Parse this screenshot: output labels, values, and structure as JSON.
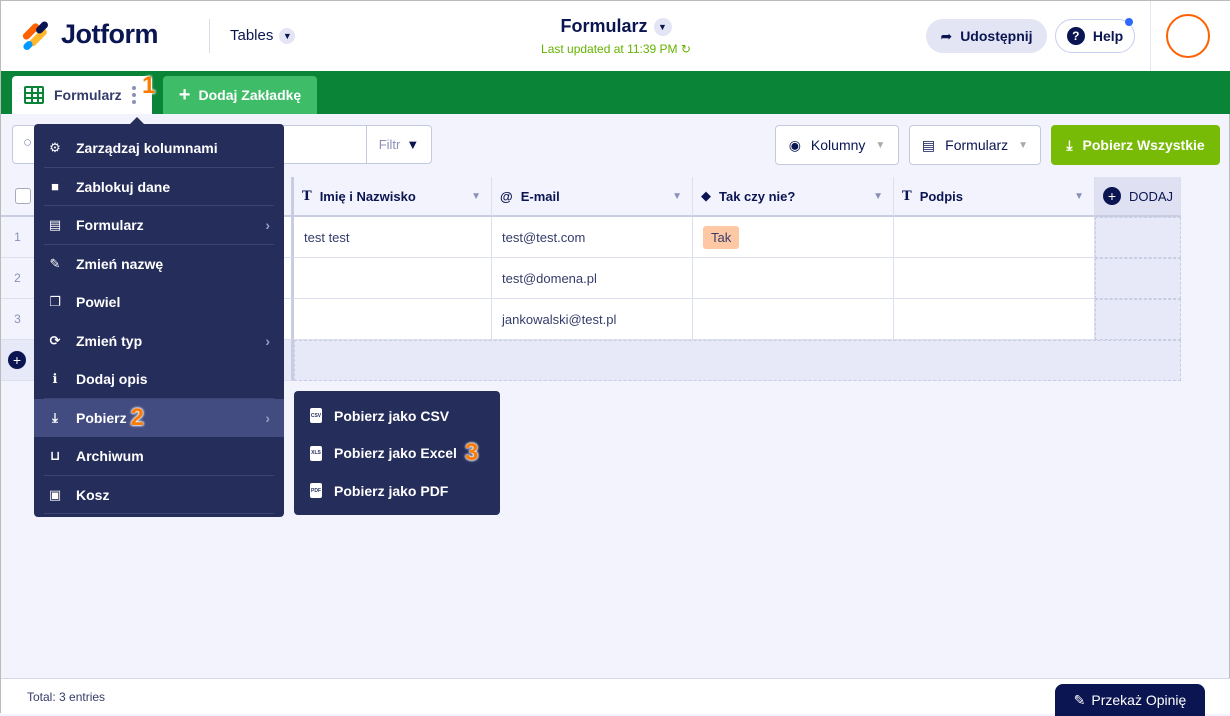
{
  "header": {
    "logo": "Jotform",
    "tables_label": "Tables",
    "title": "Formularz",
    "last_updated": "Last updated at 11:39 PM",
    "share_label": "Udostępnij",
    "help_label": "Help"
  },
  "tabs": {
    "active": "Formularz",
    "add": "Dodaj Zakładkę"
  },
  "toolbar": {
    "filter": "Filtr",
    "columns": "Kolumny",
    "form": "Formularz",
    "download_all": "Pobierz Wszystkie"
  },
  "table": {
    "columns": [
      "Imię i Nazwisko",
      "E-mail",
      "Tak czy nie?",
      "Podpis"
    ],
    "add_column": "DODAJ",
    "rows": [
      {
        "n": "1",
        "name": "test test",
        "email": "test@test.com",
        "yesno": "Tak",
        "sig": ""
      },
      {
        "n": "2",
        "name": "",
        "email": "test@domena.pl",
        "yesno": "",
        "sig": ""
      },
      {
        "n": "3",
        "name": "",
        "email": "jankowalski@test.pl",
        "yesno": "",
        "sig": ""
      }
    ]
  },
  "menu": {
    "items": [
      "Zarządzaj kolumnami",
      "Zablokuj dane",
      "Formularz",
      "Zmień nazwę",
      "Powiel",
      "Zmień typ",
      "Dodaj opis",
      "Pobierz",
      "Archiwum",
      "Kosz"
    ]
  },
  "submenu": {
    "items": [
      "Pobierz jako CSV",
      "Pobierz jako Excel",
      "Pobierz jako PDF"
    ],
    "file_icons": [
      "CSV",
      "XLS",
      "PDF"
    ]
  },
  "steps": [
    "1",
    "2",
    "3"
  ],
  "footer": {
    "total": "Total: 3 entries",
    "feedback": "Przekaż Opinię"
  },
  "colors": {
    "brand_green": "#0a8436",
    "download_green": "#78bb07",
    "menu_bg": "#252d5b",
    "step_orange": "#ff7a00"
  }
}
